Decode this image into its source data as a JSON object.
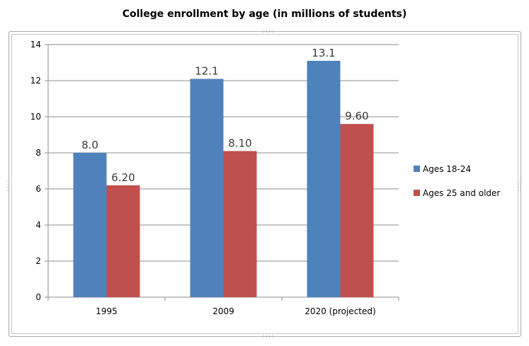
{
  "chart_data": {
    "type": "bar",
    "title": "College enrollment by age (in millions of students)",
    "categories": [
      "1995",
      "2009",
      "2020 (projected)"
    ],
    "series": [
      {
        "name": "Ages 18-24",
        "values": [
          8.0,
          12.1,
          13.1
        ],
        "labels": [
          "8.0",
          "12.1",
          "13.1"
        ],
        "color": "#4f81bd"
      },
      {
        "name": "Ages 25 and older",
        "values": [
          6.2,
          8.1,
          9.6
        ],
        "labels": [
          "6.20",
          "8.10",
          "9.60"
        ],
        "color": "#c0504d"
      }
    ],
    "xlabel": "",
    "ylabel": "",
    "ylim": [
      0,
      14
    ],
    "yticks": [
      "0",
      "2",
      "4",
      "6",
      "8",
      "10",
      "12",
      "14"
    ],
    "grid": true,
    "legend": "right"
  }
}
